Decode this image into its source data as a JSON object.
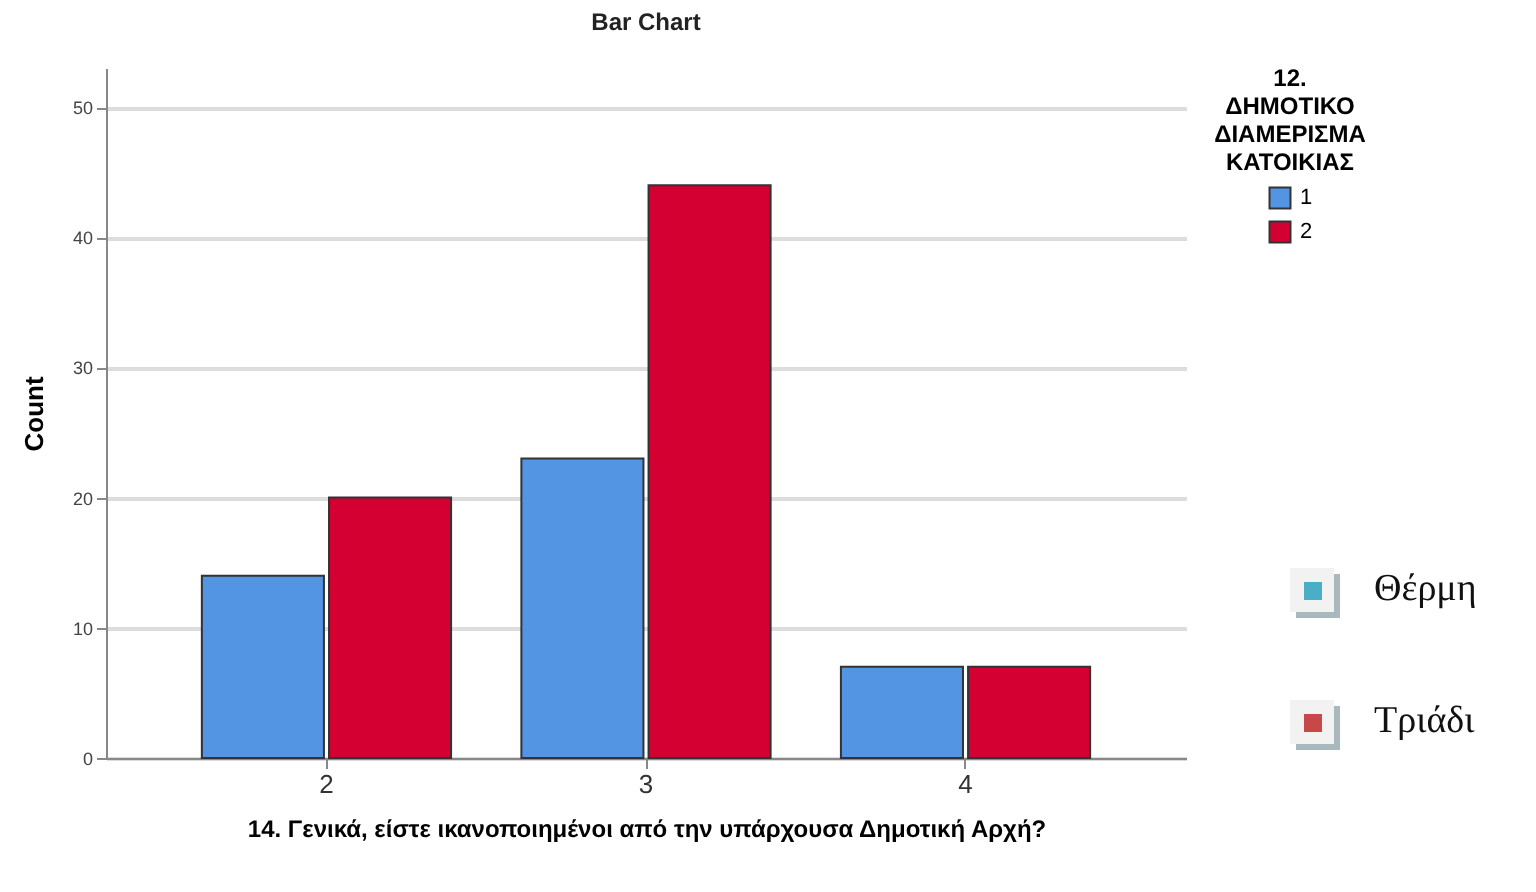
{
  "chart_data": {
    "type": "bar",
    "title": "Bar Chart",
    "xlabel": "14. Γενικά, είστε ικανοποιημένοι από την υπάρχουσα Δημοτική Αρχή?",
    "ylabel": "Count",
    "legend_title": "12. ΔΗΜΟΤΙΚΟ ΔΙΑΜΕΡΙΣΜΑ ΚΑΤΟΙΚΙΑΣ",
    "categories": [
      "2",
      "3",
      "4"
    ],
    "series": [
      {
        "name": "1",
        "color": "#5394e3",
        "values": [
          14,
          23,
          7
        ]
      },
      {
        "name": "2",
        "color": "#d50032",
        "values": [
          20,
          44,
          7
        ]
      }
    ],
    "ylim": [
      0,
      53
    ],
    "yticks": [
      0,
      10,
      20,
      30,
      40,
      50
    ],
    "grid": "y",
    "legend": "top right",
    "annotations": [
      "Θέρμη",
      "Τριάδι"
    ]
  }
}
